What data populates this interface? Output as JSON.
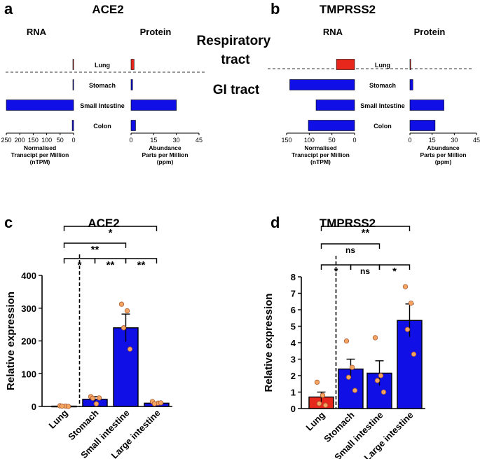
{
  "chart_data": [
    {
      "panel": "a",
      "title": "ACE2",
      "type": "bar",
      "orientation": "horizontal",
      "categories": [
        "Lung",
        "Stomach",
        "Small Intestine",
        "Colon"
      ],
      "rna": {
        "header": "RNA",
        "values": [
          1,
          2,
          250,
          5
        ],
        "axis_ticks": [
          "250",
          "200",
          "150",
          "100",
          "50",
          "0"
        ],
        "xlim": [
          0,
          250
        ],
        "xlabel": [
          "Normalised",
          "Transcipt per Million",
          "(nTPM)"
        ]
      },
      "protein": {
        "header": "Protein",
        "values": [
          2,
          1,
          30,
          3
        ],
        "axis_ticks": [
          "0",
          "15",
          "30",
          "45"
        ],
        "xlim": [
          0,
          45
        ],
        "xlabel": [
          "Abundance",
          "Parts per Million",
          "(ppm)"
        ]
      }
    },
    {
      "panel": "b",
      "title": "TMPRSS2",
      "type": "bar",
      "orientation": "horizontal",
      "categories": [
        "Lung",
        "Stomach",
        "Small Intestine",
        "Colon"
      ],
      "rna": {
        "header": "RNA",
        "values": [
          40,
          143,
          85,
          102
        ],
        "axis_ticks": [
          "150",
          "100",
          "50",
          "0"
        ],
        "xlim": [
          0,
          150
        ],
        "xlabel": [
          "Normalised",
          "Transcipt per Million",
          "(nTPM)"
        ]
      },
      "protein": {
        "header": "Protein",
        "values": [
          0.5,
          2,
          23,
          17
        ],
        "axis_ticks": [
          "0",
          "15",
          "30",
          "45"
        ],
        "xlim": [
          0,
          45
        ],
        "xlabel": [
          "Abundance",
          "Parts per Million",
          "(ppm)"
        ]
      }
    },
    {
      "panel": "c",
      "title": "ACE2",
      "type": "bar",
      "categories": [
        "Lung",
        "Stomach",
        "Small intestine",
        "Large intestine"
      ],
      "values": [
        1,
        22,
        240,
        10
      ],
      "errors": [
        0.5,
        8,
        42,
        3
      ],
      "points": [
        [
          2,
          1,
          1,
          0
        ],
        [
          30,
          8,
          25,
          26
        ],
        [
          312,
          292,
          240,
          175
        ],
        [
          15,
          10,
          8,
          11
        ]
      ],
      "bar_colors": [
        "#e8271c",
        "#1010e6",
        "#1010e6",
        "#1010e6"
      ],
      "ylabel": "Relative expression",
      "ylim": [
        0,
        400
      ],
      "yticks": [
        "0",
        "100",
        "200",
        "300",
        "400"
      ],
      "significance": [
        {
          "from": 0,
          "to": 1,
          "label": "*"
        },
        {
          "from": 1,
          "to": 2,
          "label": "**"
        },
        {
          "from": 2,
          "to": 3,
          "label": "**"
        },
        {
          "from": 0,
          "to": 2,
          "label": "**"
        },
        {
          "from": 0,
          "to": 3,
          "label": "*"
        }
      ]
    },
    {
      "panel": "d",
      "title": "TMPRSS2",
      "type": "bar",
      "categories": [
        "Lung",
        "Stomach",
        "Small intestine",
        "Large intestine"
      ],
      "values": [
        0.7,
        2.4,
        2.15,
        5.35
      ],
      "errors": [
        0.3,
        0.6,
        0.75,
        1.0
      ],
      "points": [
        [
          1.6,
          0.8,
          0.3,
          0.2
        ],
        [
          4.1,
          2.5,
          1.9,
          1.1
        ],
        [
          4.3,
          2.0,
          1.7,
          1.0
        ],
        [
          7.4,
          6.4,
          4.8,
          3.3
        ]
      ],
      "bar_colors": [
        "#e8271c",
        "#1010e6",
        "#1010e6",
        "#1010e6"
      ],
      "ylabel": "Relative expression",
      "ylim": [
        0,
        8
      ],
      "yticks": [
        "0",
        "1",
        "2",
        "3",
        "4",
        "5",
        "6",
        "7",
        "8"
      ],
      "significance": [
        {
          "from": 0,
          "to": 1,
          "label": "*"
        },
        {
          "from": 1,
          "to": 2,
          "label": "ns"
        },
        {
          "from": 2,
          "to": 3,
          "label": "*"
        },
        {
          "from": 0,
          "to": 2,
          "label": "ns"
        },
        {
          "from": 0,
          "to": 3,
          "label": "**"
        }
      ]
    }
  ],
  "labels": {
    "respiratory": "Respiratory tract",
    "gi": "GI tract"
  },
  "colors": {
    "lung": "#e8271c",
    "gi": "#1010e6",
    "point": "#f4a460"
  }
}
